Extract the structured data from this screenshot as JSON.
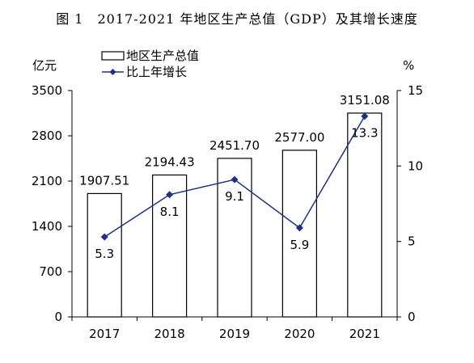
{
  "chart_data": {
    "type": "bar",
    "title": "图 1　2017-2021 年地区生产总值（GDP）及其增长速度",
    "categories": [
      "2017",
      "2018",
      "2019",
      "2020",
      "2021"
    ],
    "series": [
      {
        "name": "地区生产总值",
        "type": "bar",
        "axis": "left",
        "values": [
          1907.51,
          2194.43,
          2451.7,
          2577.0,
          3151.08
        ],
        "labels": [
          "1907.51",
          "2194.43",
          "2451.70",
          "2577.00",
          "3151.08"
        ],
        "color": "#ffffff",
        "stroke": "#000000"
      },
      {
        "name": "比上年增长",
        "type": "line",
        "axis": "right",
        "values": [
          5.3,
          8.1,
          9.1,
          5.9,
          13.3
        ],
        "labels": [
          "5.3",
          "8.1",
          "9.1",
          "5.9",
          "13.3"
        ],
        "color": "#1f2f86"
      }
    ],
    "y_left": {
      "unit": "亿元",
      "min": 0,
      "max": 3500,
      "ticks": [
        0,
        700,
        1400,
        2100,
        2800,
        3500
      ]
    },
    "y_right": {
      "unit": "%",
      "min": 0,
      "max": 15,
      "ticks": [
        0,
        5,
        10,
        15
      ]
    },
    "legend": "top-left",
    "grid": false
  }
}
